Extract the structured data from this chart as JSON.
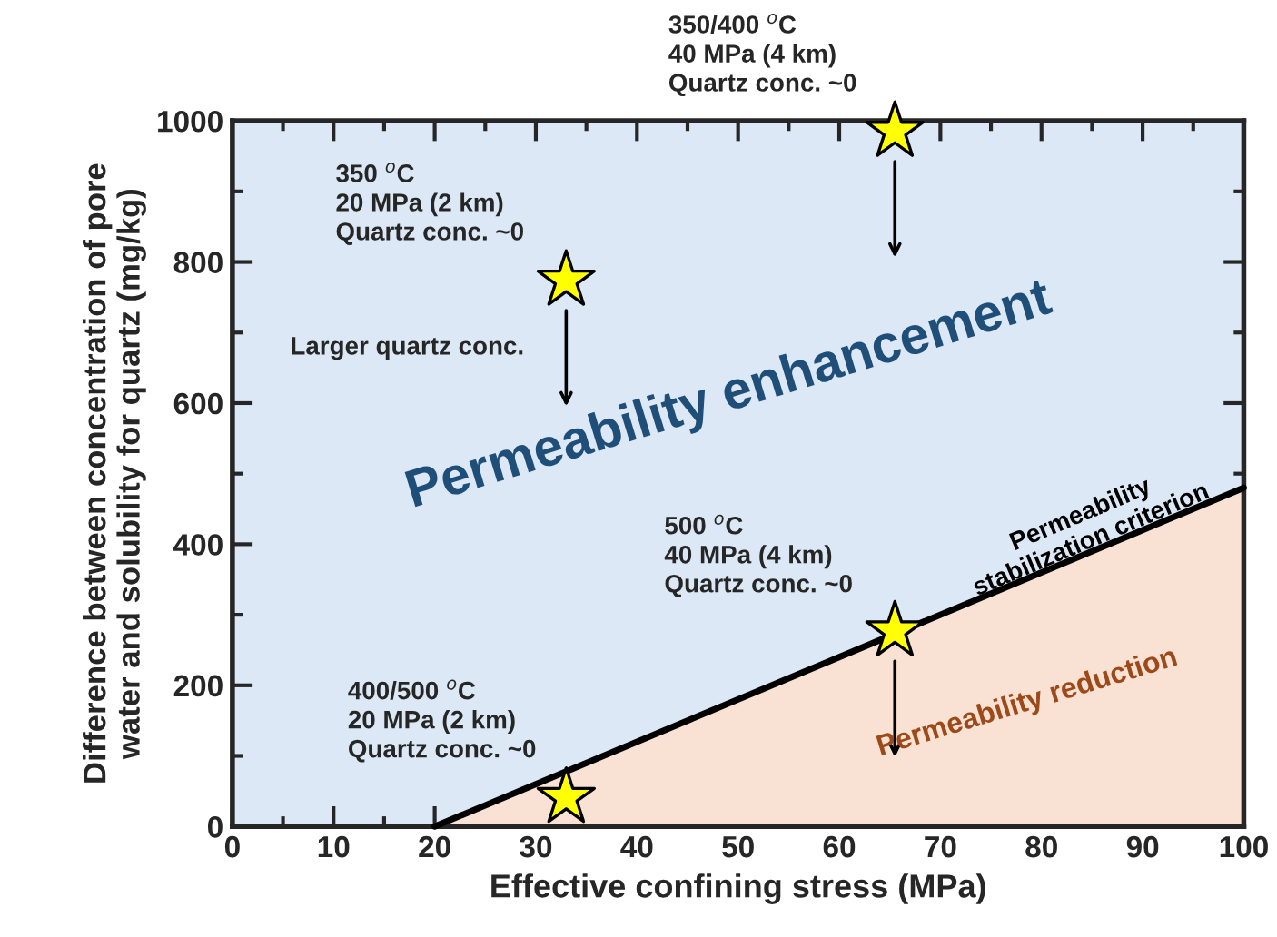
{
  "chart_data": {
    "type": "scatter",
    "xlabel": "Effective confining stress (MPa)",
    "ylabel": "Difference between concentration of pore\nwater and solubility for quartz (mg/kg)",
    "xlim": [
      0,
      100
    ],
    "xticks": [
      0,
      10,
      20,
      30,
      40,
      50,
      60,
      70,
      80,
      90,
      100
    ],
    "ylim": [
      0,
      1000
    ],
    "yticks": [
      0,
      200,
      400,
      600,
      800,
      1000
    ],
    "grid": false,
    "bands": [
      {
        "axis": "x",
        "from": 0,
        "to": 100,
        "color": "#dce8f5"
      }
    ],
    "series": [
      {
        "type": "area",
        "color": "#f9e2d4",
        "x": [
          20,
          100
        ],
        "values": [
          0,
          480
        ]
      },
      {
        "color": "#ffff00",
        "marker": "star",
        "x": [
          33,
          33,
          65.5,
          65.5
        ],
        "values": [
          41,
          774,
          985,
          277
        ]
      }
    ],
    "annotations": [
      "350/400 $^{o}$C\n40 MPa (4 km)\nQuartz conc. ~0",
      "350 $^{o}$C\n20 MPa (2 km)\nQuartz conc. ~0",
      "Larger quartz conc.",
      "Permeability enhancement",
      "500 $^{o}$C\n40 MPa (4 km)\nQuartz conc. ~0",
      "Permeability\nstabilization criterion",
      "Permeability reduction",
      "400/500 $^{o}$C\n20 MPa (2 km)\nQuartz conc. ~0"
    ]
  }
}
